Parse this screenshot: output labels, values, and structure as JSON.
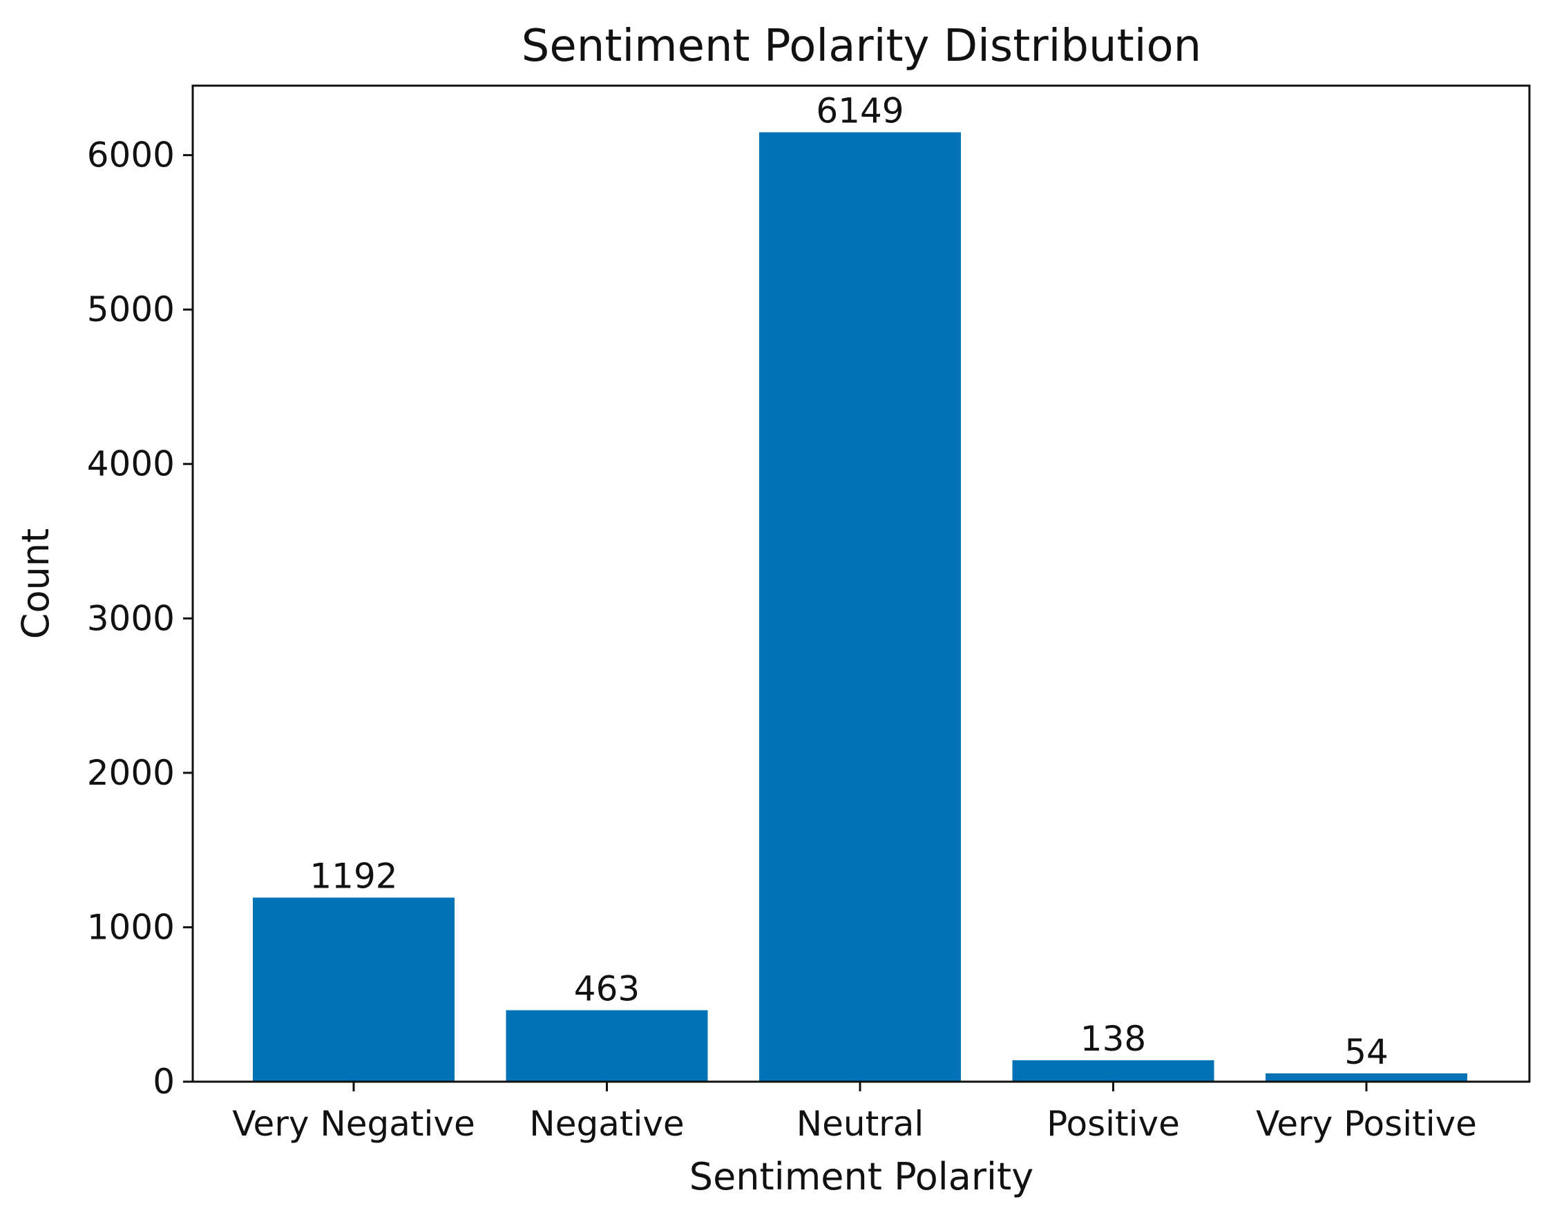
{
  "chart_data": {
    "type": "bar",
    "title": "Sentiment Polarity Distribution",
    "xlabel": "Sentiment Polarity",
    "ylabel": "Count",
    "categories": [
      "Very Negative",
      "Negative",
      "Neutral",
      "Positive",
      "Very Positive"
    ],
    "values": [
      1192,
      463,
      6149,
      138,
      54
    ],
    "data_labels": [
      "1192",
      "463",
      "6149",
      "138",
      "54"
    ],
    "ylim": [
      0,
      6450
    ],
    "yticks": [
      0,
      1000,
      2000,
      3000,
      4000,
      5000,
      6000
    ],
    "ytick_labels": [
      "0",
      "1000",
      "2000",
      "3000",
      "4000",
      "5000",
      "6000"
    ],
    "grid": false,
    "bar_color": "#0072b5"
  }
}
